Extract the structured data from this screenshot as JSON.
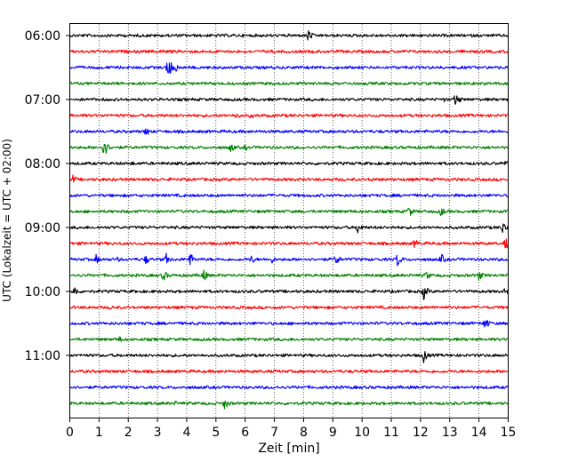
{
  "chart_data": {
    "type": "line",
    "title": "",
    "xlabel": "Zeit  [min]",
    "ylabel": "UTC (Lokalzeit = UTC + 02:00)",
    "xlim": [
      0,
      15
    ],
    "xticks": [
      0,
      1,
      2,
      3,
      4,
      5,
      6,
      7,
      8,
      9,
      10,
      11,
      12,
      13,
      14,
      15
    ],
    "ytick_labels": [
      "06:00",
      "07:00",
      "08:00",
      "09:00",
      "10:00",
      "11:00"
    ],
    "grid": "vertical dotted lines at each minute",
    "legend": "none",
    "line_colors": [
      "#000000",
      "#ff0000",
      "#0000ff",
      "#008000"
    ],
    "traces": [
      {
        "start": "06:00",
        "color": "#000000",
        "events": [
          {
            "t": 8.15,
            "amp": 8
          }
        ]
      },
      {
        "start": "06:15",
        "color": "#ff0000",
        "events": [
          {
            "t": 3.2,
            "amp": 3
          }
        ]
      },
      {
        "start": "06:30",
        "color": "#0000ff",
        "events": [
          {
            "t": 3.35,
            "amp": 14
          },
          {
            "t": 3.6,
            "amp": 6
          }
        ]
      },
      {
        "start": "06:45",
        "color": "#008000",
        "events": [
          {
            "t": 2.3,
            "amp": 2
          }
        ]
      },
      {
        "start": "07:00",
        "color": "#000000",
        "events": [
          {
            "t": 13.2,
            "amp": 9
          },
          {
            "t": 12.8,
            "amp": 3
          }
        ]
      },
      {
        "start": "07:15",
        "color": "#ff0000",
        "events": [
          {
            "t": 5.7,
            "amp": 5
          },
          {
            "t": 6.2,
            "amp": 4
          }
        ]
      },
      {
        "start": "07:30",
        "color": "#0000ff",
        "events": [
          {
            "t": 2.6,
            "amp": 6
          }
        ]
      },
      {
        "start": "07:45",
        "color": "#008000",
        "events": [
          {
            "t": 1.15,
            "amp": 13
          },
          {
            "t": 5.5,
            "amp": 6
          },
          {
            "t": 6.0,
            "amp": 4
          }
        ]
      },
      {
        "start": "08:00",
        "color": "#000000",
        "events": [
          {
            "t": 2.1,
            "amp": 3
          },
          {
            "t": 14.9,
            "amp": 4
          }
        ]
      },
      {
        "start": "08:15",
        "color": "#ff0000",
        "events": [
          {
            "t": 0.1,
            "amp": 6
          },
          {
            "t": 10.3,
            "amp": 4
          }
        ]
      },
      {
        "start": "08:30",
        "color": "#0000ff",
        "events": []
      },
      {
        "start": "08:45",
        "color": "#008000",
        "events": [
          {
            "t": 11.6,
            "amp": 7
          },
          {
            "t": 12.7,
            "amp": 6
          }
        ]
      },
      {
        "start": "09:00",
        "color": "#000000",
        "events": [
          {
            "t": 9.85,
            "amp": 8
          },
          {
            "t": 14.8,
            "amp": 8
          }
        ]
      },
      {
        "start": "09:15",
        "color": "#ff0000",
        "events": [
          {
            "t": 11.8,
            "amp": 6
          },
          {
            "t": 14.9,
            "amp": 8
          }
        ]
      },
      {
        "start": "09:30",
        "color": "#0000ff",
        "events": [
          {
            "t": 0.9,
            "amp": 6
          },
          {
            "t": 1.6,
            "amp": 4
          },
          {
            "t": 2.6,
            "amp": 6
          },
          {
            "t": 3.3,
            "amp": 7
          },
          {
            "t": 4.1,
            "amp": 9
          },
          {
            "t": 6.2,
            "amp": 6
          },
          {
            "t": 6.9,
            "amp": 5
          },
          {
            "t": 9.1,
            "amp": 7
          },
          {
            "t": 11.2,
            "amp": 9
          },
          {
            "t": 12.7,
            "amp": 7
          }
        ]
      },
      {
        "start": "09:45",
        "color": "#008000",
        "events": [
          {
            "t": 3.2,
            "amp": 7
          },
          {
            "t": 4.55,
            "amp": 9
          },
          {
            "t": 12.2,
            "amp": 6
          },
          {
            "t": 14.0,
            "amp": 6
          }
        ]
      },
      {
        "start": "10:00",
        "color": "#000000",
        "events": [
          {
            "t": 0.15,
            "amp": 7
          },
          {
            "t": 12.1,
            "amp": 10
          },
          {
            "t": 14.9,
            "amp": 5
          }
        ]
      },
      {
        "start": "10:15",
        "color": "#ff0000",
        "events": [
          {
            "t": 1.4,
            "amp": 3
          }
        ]
      },
      {
        "start": "10:30",
        "color": "#0000ff",
        "events": [
          {
            "t": 14.2,
            "amp": 8
          }
        ]
      },
      {
        "start": "10:45",
        "color": "#008000",
        "events": [
          {
            "t": 1.7,
            "amp": 4
          }
        ]
      },
      {
        "start": "11:00",
        "color": "#000000",
        "events": [
          {
            "t": 12.1,
            "amp": 9
          }
        ]
      },
      {
        "start": "11:15",
        "color": "#ff0000",
        "events": []
      },
      {
        "start": "11:30",
        "color": "#0000ff",
        "events": [
          {
            "t": 6.5,
            "amp": 2
          }
        ]
      },
      {
        "start": "11:45",
        "color": "#008000",
        "events": [
          {
            "t": 3.6,
            "amp": 3
          },
          {
            "t": 5.3,
            "amp": 8
          }
        ]
      }
    ]
  }
}
